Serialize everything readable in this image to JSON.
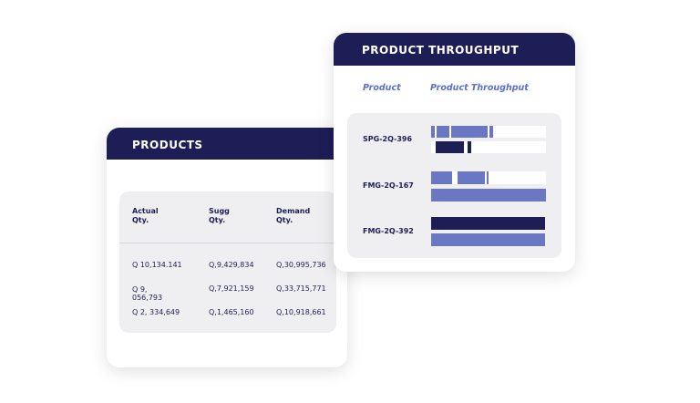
{
  "products": {
    "title": "PRODUCTS",
    "columns": [
      "Actual Qty.",
      "Sugg Qty.",
      "Demand Qty."
    ],
    "rows": [
      [
        "Q 10,134.141",
        "Q,9,429,834",
        "Q,30,995,736"
      ],
      [
        "Q 9, 056,793",
        "Q,7,921,159",
        "Q,33,715,771"
      ],
      [
        "Q 2, 334,649",
        "Q,1,465,160",
        "Q,10,918,661"
      ]
    ]
  },
  "throughput": {
    "title": "PRODUCT THROUGHPUT",
    "columns": [
      "Product",
      "Product Throughput"
    ],
    "products": [
      "SPG-2Q-396",
      "FMG-2Q-167",
      "FMG-2Q-392"
    ]
  }
}
